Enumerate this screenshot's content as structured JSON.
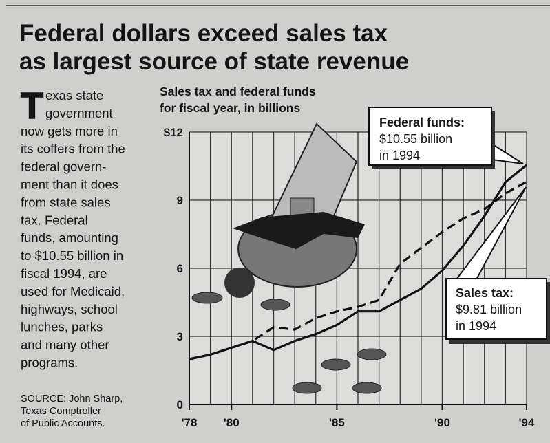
{
  "title_lines": [
    "Federal dollars exceed sales tax",
    "as largest source of state revenue"
  ],
  "body": {
    "drop_cap": "T",
    "lines": [
      "exas state",
      "government",
      "now gets more in",
      "its coffers from the",
      "federal govern-",
      "ment than it does",
      "from state sales",
      "tax.  Federal",
      "funds, amounting",
      "to $10.55 billion in",
      "fiscal 1994, are",
      "used for Medicaid,",
      "highways, school",
      "lunches, parks",
      "and many other",
      "programs."
    ]
  },
  "source_lines": [
    "SOURCE: John Sharp,",
    "Texas Comptroller",
    "of Public Accounts."
  ],
  "chart_data": {
    "type": "line",
    "subtitle_lines": [
      "Sales tax and federal funds",
      "for fiscal year, in billions"
    ],
    "x": [
      1978,
      1979,
      1980,
      1981,
      1982,
      1983,
      1984,
      1985,
      1986,
      1987,
      1988,
      1989,
      1990,
      1991,
      1992,
      1993,
      1994
    ],
    "xlim": [
      1978,
      1994
    ],
    "xticks": [
      {
        "value": 1978,
        "label": "'78"
      },
      {
        "value": 1980,
        "label": "'80"
      },
      {
        "value": 1985,
        "label": "'85"
      },
      {
        "value": 1990,
        "label": "'90"
      },
      {
        "value": 1994,
        "label": "'94"
      }
    ],
    "ylim": [
      0,
      12
    ],
    "yticks": [
      0,
      3,
      6,
      9,
      {
        "value": 12,
        "label": "$12"
      }
    ],
    "grid": true,
    "series": [
      {
        "name": "Federal funds",
        "color": "#111111",
        "line_style": "solid",
        "values": [
          2.0,
          2.2,
          2.5,
          2.8,
          2.4,
          2.8,
          3.1,
          3.5,
          4.1,
          4.1,
          4.6,
          5.1,
          5.9,
          7.0,
          8.3,
          9.8,
          10.55
        ]
      },
      {
        "name": "Sales tax",
        "color": "#111111",
        "line_style": "dashed",
        "values": [
          2.0,
          2.2,
          2.5,
          2.8,
          3.4,
          3.3,
          3.8,
          4.1,
          4.3,
          4.6,
          6.2,
          6.9,
          7.6,
          8.2,
          8.6,
          9.3,
          9.81
        ]
      }
    ],
    "annotations": [
      {
        "lines": [
          "Federal funds:",
          "$10.55 billion",
          "in 1994"
        ]
      },
      {
        "lines": [
          "Sales tax:",
          "$9.81 billion",
          "in 1994"
        ]
      }
    ]
  }
}
